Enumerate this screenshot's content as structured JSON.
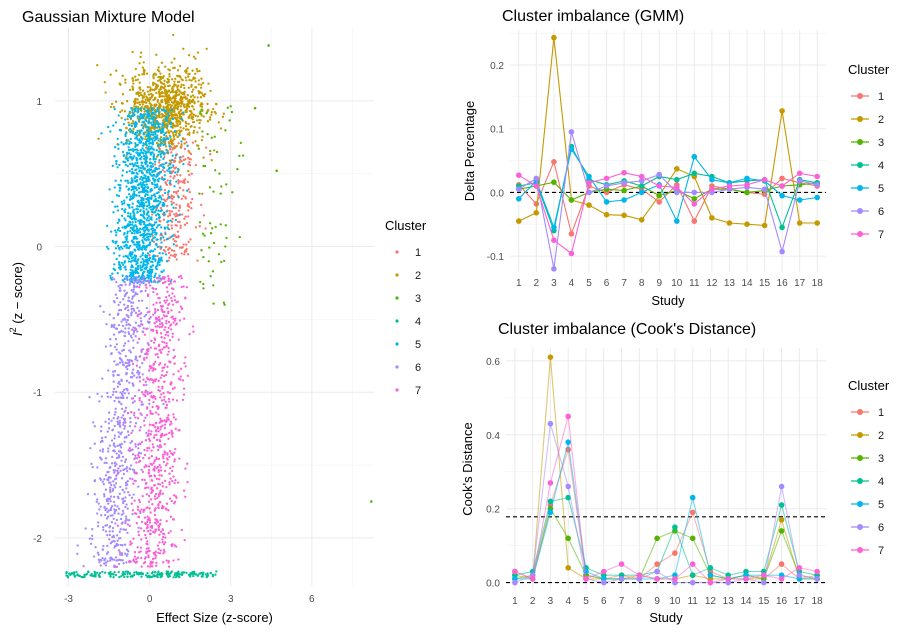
{
  "palette": [
    "#F8766D",
    "#C49A00",
    "#53B400",
    "#00C094",
    "#00B6EB",
    "#A58AFF",
    "#FB61D7"
  ],
  "chart_data": [
    {
      "id": "gmm-scatter",
      "type": "scatter",
      "title": "Gaussian Mixture Model",
      "xlabel": "Effect Size (z-score)",
      "ylabel_main": "I",
      "ylabel_sup": "2",
      "ylabel_rest": " (z − score)",
      "xlim": [
        -3.5,
        8.3
      ],
      "ylim": [
        -2.33,
        1.5
      ],
      "x_ticks": [
        -3,
        0,
        3,
        6
      ],
      "y_ticks": [
        -2,
        -1,
        0,
        1
      ],
      "grid": true,
      "legend_title": "Cluster",
      "legend_position": "right",
      "legend_labels": [
        "1",
        "2",
        "3",
        "4",
        "5",
        "6",
        "7"
      ],
      "clusters": [
        {
          "name": "1",
          "x_center": 0.9,
          "x_spread": 0.45,
          "y_range": [
            -0.1,
            0.75
          ]
        },
        {
          "name": "2",
          "x_center": 0.6,
          "x_spread": 0.75,
          "y_range": [
            0.7,
            1.25
          ]
        },
        {
          "name": "3",
          "x_center": 2.2,
          "x_spread": 0.9,
          "y_range": [
            -0.4,
            1.0
          ]
        },
        {
          "name": "4",
          "x_center": -0.2,
          "x_spread": 1.6,
          "y_range": [
            -2.27,
            -2.23
          ]
        },
        {
          "name": "5",
          "x_center": -0.3,
          "x_spread": 0.55,
          "y_range": [
            -0.25,
            0.95
          ]
        },
        {
          "name": "6",
          "x_center": -1.2,
          "x_spread": 0.45,
          "y_range": [
            -2.2,
            -0.2
          ]
        },
        {
          "name": "7",
          "x_center": -0.1,
          "x_spread": 0.55,
          "y_range": [
            -2.2,
            -0.2
          ]
        }
      ],
      "outliers": [
        {
          "cluster": "3",
          "x": 8.2,
          "y": -1.75
        },
        {
          "cluster": "3",
          "x": 4.7,
          "y": 0.52
        },
        {
          "cluster": "3",
          "x": 4.4,
          "y": 1.38
        },
        {
          "cluster": "3",
          "x": 3.9,
          "y": 0.95
        }
      ]
    },
    {
      "id": "gmm-imbalance",
      "type": "line",
      "title": "Cluster imbalance (GMM)",
      "xlabel": "Study",
      "ylabel": "Delta Percentage",
      "categories": [
        "1",
        "2",
        "3",
        "4",
        "5",
        "6",
        "7",
        "8",
        "9",
        "10",
        "11",
        "12",
        "13",
        "14",
        "15",
        "16",
        "17",
        "18"
      ],
      "ylim": [
        -0.125,
        0.255
      ],
      "y_ticks": [
        -0.1,
        0.0,
        0.1,
        0.2
      ],
      "y_tick_labels": [
        "-0.1",
        "0.0",
        "0.1",
        "0.2"
      ],
      "hline": [
        0
      ],
      "grid": true,
      "legend_title": "Cluster",
      "legend_position": "right",
      "series": [
        {
          "name": "1",
          "values": [
            0.012,
            -0.018,
            0.048,
            -0.065,
            0.01,
            0.0,
            0.012,
            0.005,
            -0.015,
            0.012,
            -0.045,
            0.01,
            0.005,
            0.0,
            -0.003,
            0.022,
            0.015,
            0.01
          ]
        },
        {
          "name": "2",
          "values": [
            -0.045,
            -0.032,
            0.243,
            -0.012,
            -0.02,
            -0.035,
            -0.036,
            -0.043,
            -0.005,
            0.037,
            0.025,
            -0.04,
            -0.048,
            -0.05,
            -0.052,
            0.128,
            -0.048,
            -0.048
          ]
        },
        {
          "name": "3",
          "values": [
            0.005,
            0.01,
            0.016,
            -0.012,
            0.0,
            0.005,
            0.003,
            0.01,
            -0.005,
            0.003,
            -0.01,
            0.005,
            0.005,
            0.0,
            0.003,
            0.01,
            0.012,
            0.015
          ]
        },
        {
          "name": "4",
          "values": [
            0.01,
            0.015,
            -0.06,
            0.072,
            0.02,
            0.012,
            0.018,
            0.01,
            0.025,
            0.02,
            0.03,
            0.025,
            0.015,
            0.018,
            0.02,
            -0.055,
            0.02,
            0.015
          ]
        },
        {
          "name": "5",
          "values": [
            -0.01,
            0.018,
            -0.055,
            0.068,
            0.025,
            -0.015,
            -0.012,
            0.0,
            0.012,
            -0.045,
            0.056,
            0.02,
            0.015,
            0.022,
            0.018,
            -0.005,
            -0.012,
            -0.008
          ]
        },
        {
          "name": "6",
          "values": [
            0.005,
            0.022,
            -0.12,
            0.095,
            0.0,
            0.01,
            0.015,
            0.018,
            0.028,
            0.0,
            0.0,
            0.0,
            0.005,
            0.008,
            0.005,
            -0.093,
            0.018,
            0.012
          ]
        },
        {
          "name": "7",
          "values": [
            0.027,
            0.01,
            -0.075,
            -0.096,
            0.015,
            0.022,
            0.031,
            0.025,
            0.01,
            0.008,
            -0.018,
            0.005,
            0.01,
            0.012,
            0.02,
            0.01,
            0.03,
            0.025
          ]
        }
      ]
    },
    {
      "id": "cooks-imbalance",
      "type": "line",
      "title": "Cluster imbalance (Cook's Distance)",
      "xlabel": "Study",
      "ylabel": "Cook's Distance",
      "categories": [
        "1",
        "2",
        "3",
        "4",
        "5",
        "6",
        "7",
        "8",
        "9",
        "10",
        "11",
        "12",
        "13",
        "14",
        "15",
        "16",
        "17",
        "18"
      ],
      "ylim": [
        -0.02,
        0.635
      ],
      "y_ticks": [
        0.0,
        0.2,
        0.4,
        0.6
      ],
      "y_tick_labels": [
        "0.0",
        "0.2",
        "0.4",
        "0.6"
      ],
      "hline": [
        0.0,
        0.178
      ],
      "grid": true,
      "legend_title": "Cluster",
      "legend_position": "right",
      "series": [
        {
          "name": "1",
          "values": [
            0.03,
            0.01,
            0.21,
            0.36,
            0.02,
            0.01,
            0.02,
            0.01,
            0.05,
            0.08,
            0.19,
            0.03,
            0.01,
            0.02,
            0.01,
            0.05,
            0.01,
            0.02
          ]
        },
        {
          "name": "2",
          "values": [
            0.02,
            0.01,
            0.61,
            0.04,
            0.01,
            0.01,
            0.01,
            0.02,
            0.01,
            0.01,
            0.02,
            0.01,
            0.01,
            0.01,
            0.01,
            0.17,
            0.01,
            0.01
          ]
        },
        {
          "name": "3",
          "values": [
            0.01,
            0.02,
            0.2,
            0.12,
            0.02,
            0.01,
            0.01,
            0.01,
            0.12,
            0.14,
            0.12,
            0.02,
            0.01,
            0.02,
            0.01,
            0.14,
            0.02,
            0.01
          ]
        },
        {
          "name": "4",
          "values": [
            0.02,
            0.03,
            0.22,
            0.23,
            0.04,
            0.02,
            0.02,
            0.02,
            0.03,
            0.15,
            0.02,
            0.04,
            0.02,
            0.03,
            0.03,
            0.21,
            0.03,
            0.02
          ]
        },
        {
          "name": "5",
          "values": [
            0.01,
            0.01,
            0.19,
            0.38,
            0.03,
            0.01,
            0.01,
            0.01,
            0.01,
            0.02,
            0.23,
            0.02,
            0.01,
            0.02,
            0.02,
            0.02,
            0.01,
            0.01
          ]
        },
        {
          "name": "6",
          "values": [
            0.0,
            0.02,
            0.43,
            0.26,
            0.01,
            0.0,
            0.01,
            0.01,
            0.03,
            0.0,
            0.0,
            0.0,
            0.0,
            0.01,
            0.0,
            0.26,
            0.02,
            0.01
          ]
        },
        {
          "name": "7",
          "values": [
            0.03,
            0.01,
            0.27,
            0.45,
            0.01,
            0.03,
            0.05,
            0.02,
            0.01,
            0.01,
            0.05,
            0.0,
            0.01,
            0.01,
            0.02,
            0.01,
            0.04,
            0.03
          ]
        }
      ]
    }
  ]
}
